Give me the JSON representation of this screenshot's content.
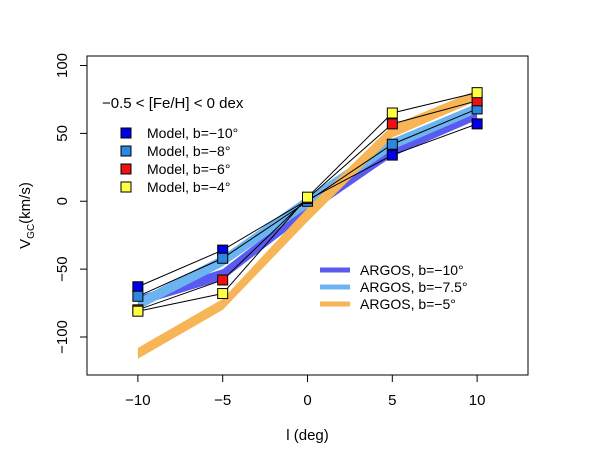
{
  "chart_data": {
    "type": "line",
    "xlabel": "l (deg)",
    "ylabel_main": "V",
    "ylabel_sub": "GC",
    "ylabel_unit": "(km/s)",
    "annotation": "−0.5 < [Fe/H] < 0 dex",
    "xlim": [
      -13,
      13
    ],
    "ylim": [
      -128,
      107
    ],
    "x_ticks": [
      -10,
      -5,
      0,
      5,
      10
    ],
    "x_tick_labels": [
      "−10",
      "−5",
      "0",
      "5",
      "10"
    ],
    "y_ticks": [
      -100,
      -50,
      0,
      50,
      100
    ],
    "y_tick_labels": [
      "−100",
      "−50",
      "0",
      "50",
      "100"
    ],
    "grid": false,
    "argos_series": [
      {
        "name": "ARGOS, b=−10°",
        "color": "#5a5af0",
        "x": [
          -10,
          -5,
          0,
          5,
          10
        ],
        "y_low": [
          -77,
          -58,
          -10,
          33,
          60
        ],
        "y_high": [
          -70,
          -50,
          -2,
          40,
          66
        ]
      },
      {
        "name": "ARGOS, b=−7.5°",
        "color": "#6cb4ef",
        "x": [
          -10,
          -5,
          0,
          5,
          10
        ],
        "y_low": [
          -80,
          -48,
          -5,
          38,
          65
        ],
        "y_high": [
          -72,
          -40,
          4,
          46,
          72
        ]
      },
      {
        "name": "ARGOS, b=−5°",
        "color": "#f7b555",
        "x": [
          -10,
          -5,
          0,
          5,
          10
        ],
        "y_low": [
          -116,
          -80,
          -15,
          47,
          74
        ],
        "y_high": [
          -108,
          -72,
          -5,
          56,
          82
        ]
      }
    ],
    "model_series": [
      {
        "name": "Model, b=−10°",
        "color": "#0000e6",
        "x": [
          -10,
          -5,
          0,
          5,
          10
        ],
        "y": [
          -63,
          -36,
          1,
          34,
          57
        ]
      },
      {
        "name": "Model, b=−8°",
        "color": "#2b88e0",
        "x": [
          -10,
          -5,
          0,
          5,
          10
        ],
        "y": [
          -70,
          -42,
          0,
          42,
          68
        ]
      },
      {
        "name": "Model, b=−6°",
        "color": "#ee1111",
        "x": [
          -10,
          -5,
          0,
          5,
          10
        ],
        "y": [
          -80,
          -58,
          2,
          57,
          74
        ]
      },
      {
        "name": "Model, b=−4°",
        "color": "#ffff44",
        "x": [
          -10,
          -5,
          0,
          5,
          10
        ],
        "y": [
          -81,
          -68,
          3,
          65,
          80
        ]
      }
    ],
    "legend_model_placement": "top-left",
    "legend_argos_placement": "bottom-right"
  }
}
